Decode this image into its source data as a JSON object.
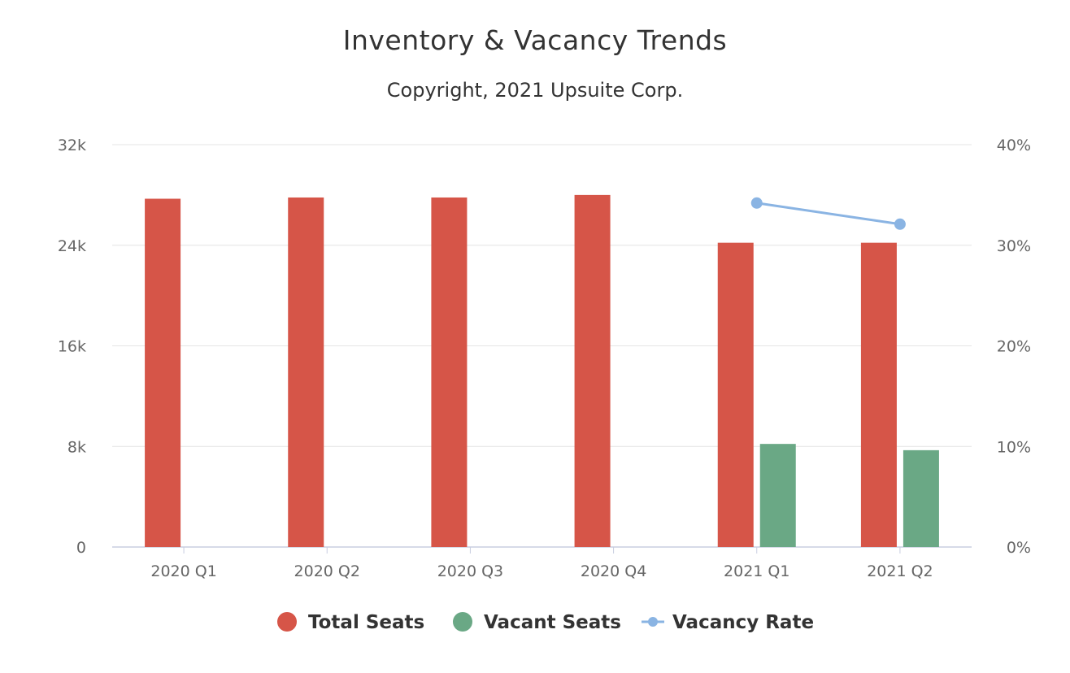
{
  "chart_data": {
    "type": "bar",
    "title": "Inventory & Vacancy Trends",
    "subtitle": "Copyright, 2021 Upsuite Corp.",
    "categories": [
      "2020 Q1",
      "2020 Q2",
      "2020 Q3",
      "2020 Q4",
      "2021 Q1",
      "2021 Q2"
    ],
    "series": [
      {
        "name": "Total Seats",
        "kind": "bar",
        "axis": "left",
        "color": "#d65548",
        "values": [
          27700,
          27800,
          27800,
          28000,
          24200,
          24200
        ]
      },
      {
        "name": "Vacant Seats",
        "kind": "bar",
        "axis": "left",
        "color": "#6aa885",
        "values": [
          null,
          null,
          null,
          null,
          8200,
          7700
        ]
      },
      {
        "name": "Vacancy Rate",
        "kind": "line",
        "axis": "right",
        "color": "#8ab4e3",
        "values": [
          null,
          null,
          null,
          null,
          34.2,
          32.1
        ]
      }
    ],
    "y_left": {
      "min": 0,
      "max": 32000,
      "ticks": [
        0,
        8000,
        16000,
        24000,
        32000
      ],
      "tick_labels": [
        "0",
        "8k",
        "16k",
        "24k",
        "32k"
      ]
    },
    "y_right": {
      "min": 0,
      "max": 40,
      "ticks": [
        0,
        10,
        20,
        30,
        40
      ],
      "tick_labels": [
        "0%",
        "10%",
        "20%",
        "30%",
        "40%"
      ]
    },
    "grid": true,
    "legend_position": "bottom-center"
  }
}
